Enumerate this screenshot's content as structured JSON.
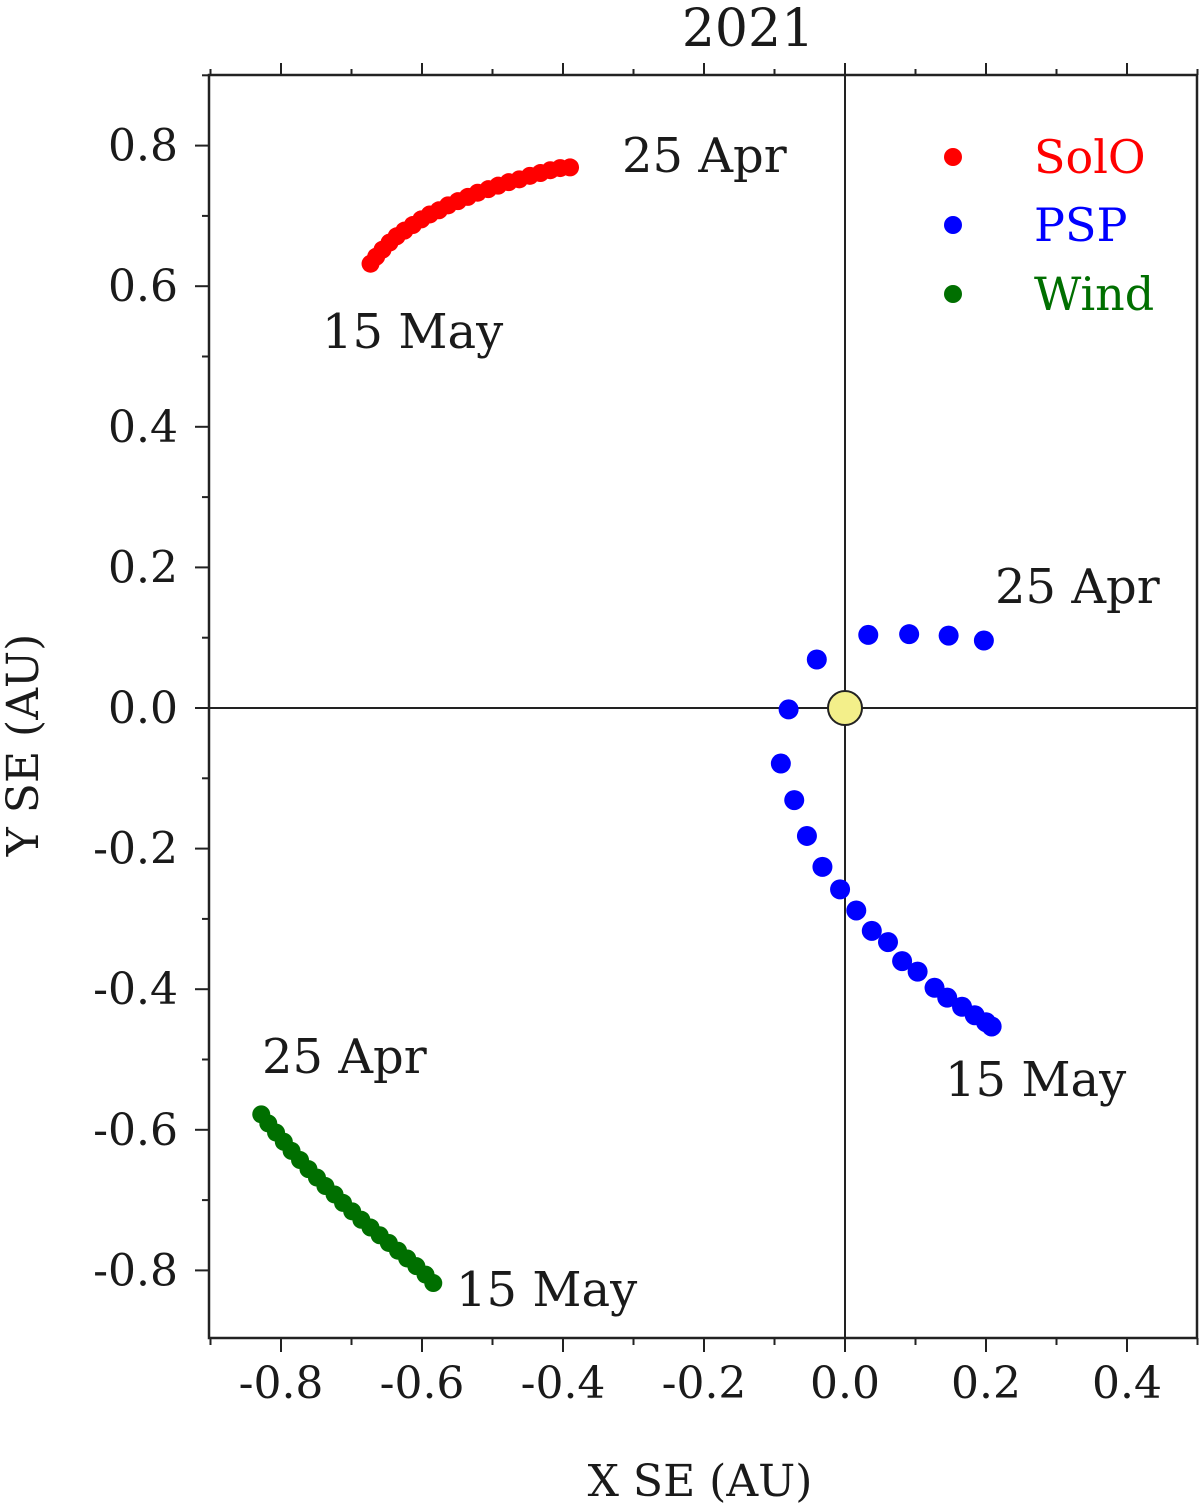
{
  "chart_data": {
    "type": "scatter",
    "title": "2021",
    "xlabel": "X SE (AU)",
    "ylabel": "Y SE (AU)",
    "xlim": [
      -0.9,
      0.5
    ],
    "ylim": [
      -0.9,
      0.9
    ],
    "xticks": [
      -0.8,
      -0.6,
      -0.4,
      -0.2,
      0.0,
      0.2,
      0.4
    ],
    "xtick_labels": [
      "-0.8",
      "-0.6",
      "-0.4",
      "-0.2",
      "0.0",
      "0.2",
      "0.4"
    ],
    "yticks": [
      0.8,
      0.6,
      0.4,
      0.2,
      0.0,
      -0.2,
      -0.4,
      -0.6,
      -0.8
    ],
    "ytick_labels": [
      "0.8",
      "0.6",
      "0.4",
      "0.2",
      "0.0",
      "-0.2",
      "-0.4",
      "-0.6",
      "-0.8"
    ],
    "legend_position": "top-right",
    "sun": {
      "x": 0.0,
      "y": 0.0,
      "color": "#f3ef8a"
    },
    "series": [
      {
        "name": "SolO",
        "color": "#ff0000",
        "x": [
          -0.673,
          -0.665,
          -0.656,
          -0.646,
          -0.636,
          -0.625,
          -0.613,
          -0.601,
          -0.589,
          -0.576,
          -0.563,
          -0.549,
          -0.535,
          -0.521,
          -0.506,
          -0.492,
          -0.477,
          -0.462,
          -0.447,
          -0.432,
          -0.418,
          -0.404,
          -0.39
        ],
        "y": [
          0.632,
          0.642,
          0.652,
          0.662,
          0.671,
          0.679,
          0.687,
          0.695,
          0.702,
          0.708,
          0.715,
          0.721,
          0.727,
          0.733,
          0.738,
          0.743,
          0.748,
          0.752,
          0.757,
          0.761,
          0.765,
          0.768,
          0.769
        ]
      },
      {
        "name": "PSP",
        "color": "#0000ff",
        "x": [
          0.197,
          0.147,
          0.091,
          0.033,
          -0.04,
          -0.08,
          -0.091,
          -0.072,
          -0.054,
          -0.032,
          -0.007,
          0.016,
          0.038,
          0.061,
          0.081,
          0.103,
          0.127,
          0.145,
          0.166,
          0.184,
          0.2,
          0.208
        ],
        "y": [
          0.096,
          0.103,
          0.105,
          0.104,
          0.069,
          -0.002,
          -0.079,
          -0.131,
          -0.182,
          -0.226,
          -0.258,
          -0.288,
          -0.317,
          -0.333,
          -0.36,
          -0.375,
          -0.398,
          -0.412,
          -0.425,
          -0.437,
          -0.447,
          -0.453
        ]
      },
      {
        "name": "Wind",
        "color": "#006f00",
        "x": [
          -0.828,
          -0.818,
          -0.807,
          -0.796,
          -0.785,
          -0.773,
          -0.761,
          -0.749,
          -0.737,
          -0.724,
          -0.712,
          -0.699,
          -0.686,
          -0.673,
          -0.66,
          -0.647,
          -0.634,
          -0.621,
          -0.608,
          -0.595,
          -0.584
        ],
        "y": [
          -0.578,
          -0.591,
          -0.604,
          -0.617,
          -0.63,
          -0.643,
          -0.656,
          -0.668,
          -0.68,
          -0.692,
          -0.704,
          -0.716,
          -0.728,
          -0.739,
          -0.75,
          -0.761,
          -0.772,
          -0.783,
          -0.794,
          -0.806,
          -0.818
        ]
      }
    ],
    "annotations": [
      {
        "text": "25 Apr",
        "series": "SolO"
      },
      {
        "text": "15 May",
        "series": "SolO"
      },
      {
        "text": "25 Apr",
        "series": "PSP"
      },
      {
        "text": "15 May",
        "series": "PSP"
      },
      {
        "text": "25 Apr",
        "series": "Wind"
      },
      {
        "text": "15 May",
        "series": "Wind"
      }
    ]
  }
}
